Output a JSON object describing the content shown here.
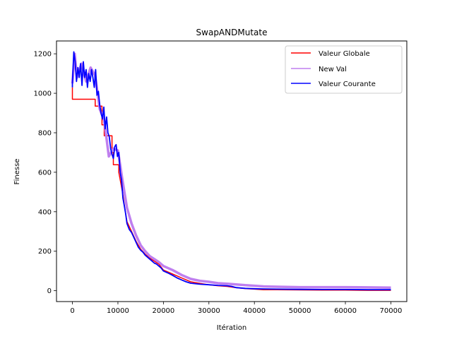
{
  "chart_data": {
    "type": "line",
    "title": "SwapANDMutate",
    "xlabel": "Itération",
    "ylabel": "Finesse",
    "xlim": [
      -3500,
      73500
    ],
    "ylim": [
      -55,
      1265
    ],
    "xticks": [
      0,
      10000,
      20000,
      30000,
      40000,
      50000,
      60000,
      70000
    ],
    "xtick_labels": [
      "0",
      "10000",
      "20000",
      "30000",
      "40000",
      "50000",
      "60000",
      "70000"
    ],
    "yticks": [
      0,
      200,
      400,
      600,
      800,
      1000,
      1200
    ],
    "ytick_labels": [
      "0",
      "200",
      "400",
      "600",
      "800",
      "1000",
      "1200"
    ],
    "grid": false,
    "legend_position": "upper right",
    "series": [
      {
        "name": "Valeur Globale",
        "color": "#ff0000",
        "x": [
          0,
          0,
          5000,
          5000,
          6500,
          6500,
          7000,
          7000,
          8700,
          8700,
          9000,
          9000,
          10200,
          10200,
          11000,
          11500,
          12000,
          13000,
          14000,
          15000,
          16000,
          17000,
          18000,
          19000,
          20000,
          22000,
          24000,
          26000,
          28000,
          30000,
          32000,
          34000,
          36000,
          38000,
          40000,
          42000,
          45000,
          50000,
          55000,
          60000,
          65000,
          70000
        ],
        "y": [
          1030,
          970,
          970,
          935,
          935,
          840,
          840,
          785,
          785,
          700,
          700,
          638,
          638,
          600,
          500,
          420,
          350,
          300,
          250,
          210,
          185,
          165,
          150,
          135,
          105,
          85,
          65,
          45,
          37,
          30,
          25,
          22,
          15,
          11,
          8,
          5,
          5,
          4,
          3,
          3,
          2,
          2
        ]
      },
      {
        "name": "New Val",
        "color": "#bf7fef",
        "x": [
          0,
          500,
          1000,
          2000,
          3000,
          4000,
          5000,
          6000,
          7000,
          8000,
          9000,
          10000,
          11000,
          12000,
          13000,
          14000,
          15000,
          16000,
          17000,
          18000,
          19000,
          20000,
          22000,
          24000,
          26000,
          28000,
          30000,
          32000,
          34000,
          36000,
          38000,
          40000,
          42000,
          45000,
          50000,
          55000,
          60000,
          65000,
          70000
        ],
        "y": [
          1050,
          1200,
          1080,
          1150,
          1060,
          1130,
          1090,
          920,
          860,
          680,
          720,
          710,
          560,
          420,
          340,
          280,
          230,
          200,
          175,
          160,
          145,
          125,
          105,
          80,
          60,
          50,
          45,
          38,
          35,
          32,
          28,
          25,
          22,
          20,
          18,
          18,
          18,
          17,
          16
        ]
      },
      {
        "name": "Valeur Courante",
        "color": "#0000ff",
        "x": [
          0,
          0,
          300,
          600,
          900,
          1200,
          1500,
          1800,
          2100,
          2400,
          2700,
          3000,
          3300,
          3600,
          3900,
          4200,
          4500,
          4800,
          5100,
          5400,
          5700,
          6000,
          6300,
          6600,
          6900,
          7200,
          7500,
          7800,
          8100,
          8400,
          8700,
          9000,
          9300,
          9600,
          9900,
          10200,
          10500,
          10800,
          11100,
          11400,
          11700,
          12000,
          12500,
          13000,
          13500,
          14000,
          14500,
          15000,
          15500,
          16000,
          16500,
          17000,
          17500,
          18000,
          18500,
          19000,
          19500,
          20000,
          21000,
          22000,
          23000,
          24000,
          25000,
          26000,
          28000,
          30000,
          32000,
          34000,
          35000,
          36000,
          38000,
          40000,
          42000,
          45000,
          50000,
          55000,
          60000,
          65000,
          70000
        ],
        "y": [
          1030,
          1050,
          1210,
          1160,
          1060,
          1130,
          1080,
          1150,
          1040,
          1160,
          1080,
          1120,
          1030,
          1100,
          1060,
          1120,
          1080,
          1030,
          1120,
          990,
          1010,
          940,
          900,
          870,
          930,
          820,
          880,
          800,
          780,
          720,
          690,
          670,
          730,
          740,
          680,
          700,
          600,
          560,
          470,
          430,
          390,
          340,
          310,
          295,
          270,
          245,
          220,
          205,
          195,
          180,
          170,
          160,
          150,
          140,
          135,
          125,
          115,
          100,
          90,
          78,
          65,
          55,
          45,
          38,
          33,
          30,
          27,
          25,
          22,
          16,
          12,
          10,
          9,
          8,
          7,
          6,
          6,
          5,
          5
        ]
      }
    ]
  }
}
